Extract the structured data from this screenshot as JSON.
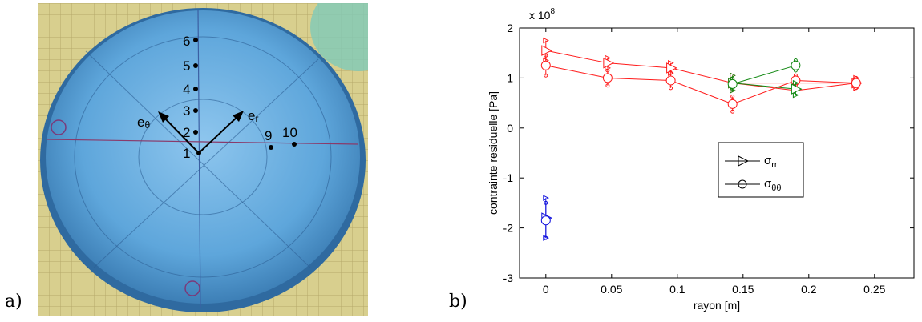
{
  "panels": {
    "a_label": "a)",
    "b_label": "b)"
  },
  "photo": {
    "description_icon": "blue-dish-photo-icon",
    "points": [
      {
        "label": "6"
      },
      {
        "label": "5"
      },
      {
        "label": "4"
      },
      {
        "label": "3"
      },
      {
        "label": "2"
      },
      {
        "label": "1"
      },
      {
        "label": "9"
      },
      {
        "label": "10"
      }
    ],
    "vectors": {
      "e_theta_base": "e",
      "e_theta_sub": "θ",
      "e_r_base": "e",
      "e_r_sub": "r"
    }
  },
  "colors": {
    "red": "#ff1a1a",
    "green": "#118811",
    "blue": "#1111dd",
    "photo_blue": "#5fa8d8"
  },
  "chart_data": {
    "type": "scatter",
    "xlabel": "rayon [m]",
    "ylabel": "contrainte residuelle [Pa]",
    "exponent_base": "x 10",
    "exponent_power": "8",
    "xlim": [
      -0.02,
      0.28
    ],
    "ylim": [
      -3,
      2
    ],
    "xticks": [
      "0",
      "0.05",
      "0.1",
      "0.15",
      "0.2",
      "0.25"
    ],
    "xtick_values": [
      0,
      0.05,
      0.1,
      0.15,
      0.2,
      0.25
    ],
    "yticks": [
      "2",
      "1",
      "0",
      "-1",
      "-2",
      "-3"
    ],
    "ytick_values": [
      2,
      1,
      0,
      -1,
      -2,
      -3
    ],
    "grid": false,
    "legend": {
      "placement": "center-right",
      "entries": [
        {
          "base": "σ",
          "sub": "rr",
          "marker": "triangle"
        },
        {
          "base": "σ",
          "sub": "θθ",
          "marker": "circle"
        }
      ]
    },
    "series": [
      {
        "marker": "triangle",
        "color": "red",
        "x": [
          0,
          0.047,
          0.095,
          0.142,
          0.236
        ],
        "y": [
          1.55,
          1.3,
          1.2,
          0.9,
          0.9
        ],
        "err": [
          0.2,
          0.1,
          0.1,
          0.15,
          0.1
        ]
      },
      {
        "marker": "circle",
        "color": "red",
        "x": [
          0,
          0.047,
          0.095,
          0.142,
          0.19,
          0.236
        ],
        "y": [
          1.25,
          1.0,
          0.95,
          0.48,
          0.95,
          0.9
        ],
        "err": [
          0.2,
          0.15,
          0.15,
          0.15,
          0.1,
          0.1
        ]
      },
      {
        "marker": "triangle",
        "color": "green",
        "x": [
          0.142,
          0.19
        ],
        "y": [
          0.9,
          0.78
        ],
        "err": [
          0.15,
          0.12
        ]
      },
      {
        "marker": "circle",
        "color": "green",
        "x": [
          0.142,
          0.19
        ],
        "y": [
          0.88,
          1.25
        ],
        "err": [
          0.1,
          0.1
        ]
      },
      {
        "marker": "triangle",
        "color": "blue",
        "x": [
          0
        ],
        "y": [
          -1.8
        ],
        "err": [
          0.4
        ]
      },
      {
        "marker": "circle",
        "color": "blue",
        "x": [
          0
        ],
        "y": [
          -1.85
        ],
        "err": [
          0.35
        ]
      }
    ],
    "red_extra_line": {
      "x": [
        0.142,
        0.19,
        0.236
      ],
      "y": [
        0.9,
        0.75,
        0.9
      ]
    }
  }
}
